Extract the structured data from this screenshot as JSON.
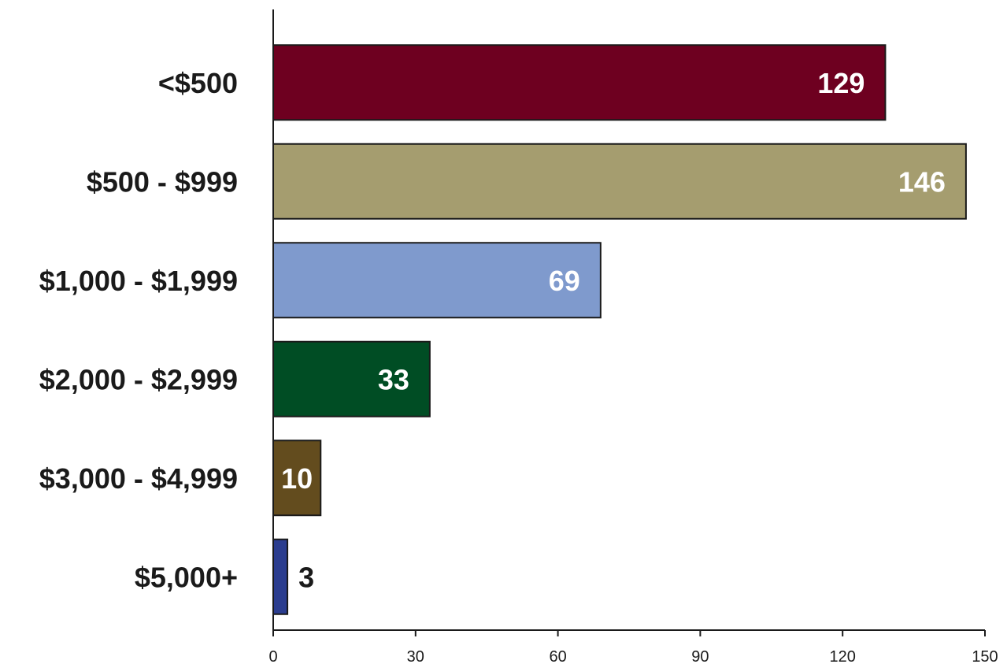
{
  "chart_data": {
    "type": "bar",
    "orientation": "horizontal",
    "title": "",
    "xlabel": "",
    "ylabel": "",
    "categories": [
      "<$500",
      "$500 - $999",
      "$1,000 - $1,999",
      "$2,000 - $2,999",
      "$3,000 - $4,999",
      "$5,000+"
    ],
    "values": [
      129,
      146,
      69,
      33,
      10,
      3
    ],
    "data_labels": [
      "129",
      "146",
      "69",
      "33",
      "10",
      "3"
    ],
    "colors": [
      "#6e0020",
      "#a59d6f",
      "#7f9acd",
      "#004d24",
      "#634c1e",
      "#2b3d8f"
    ],
    "xlim": [
      0,
      150
    ],
    "xticks": [
      0,
      30,
      60,
      90,
      120,
      150
    ],
    "xtick_labels": [
      "0",
      "30",
      "60",
      "90",
      "120",
      "150"
    ],
    "grid": false,
    "legend": "none"
  }
}
